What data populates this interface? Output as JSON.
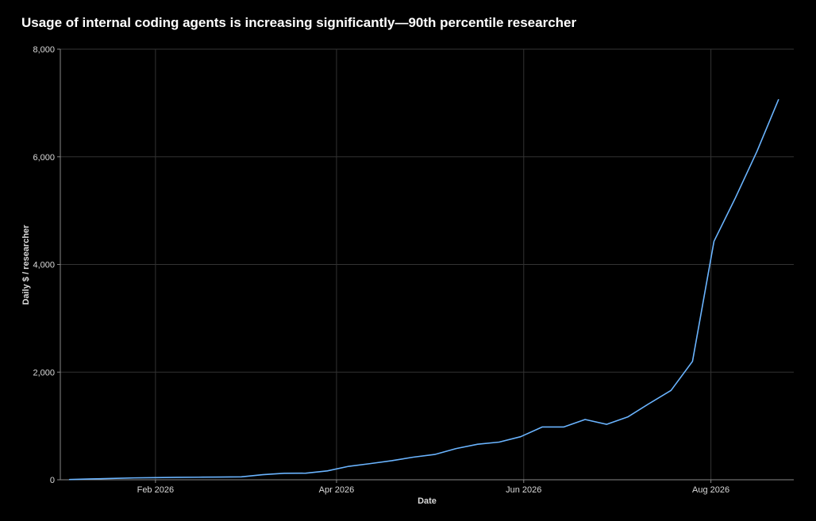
{
  "chart_data": {
    "type": "line",
    "title": "Usage of internal coding agents is increasing significantly—90th percentile researcher",
    "xlabel": "Date",
    "ylabel": "Daily $ / researcher",
    "x_ticks": [
      {
        "date": "2026-02-01",
        "label": "Feb 2026"
      },
      {
        "date": "2026-04-01",
        "label": "Apr 2026"
      },
      {
        "date": "2026-06-01",
        "label": "Jun 2026"
      },
      {
        "date": "2026-08-01",
        "label": "Aug 2026"
      }
    ],
    "y_ticks": [
      {
        "value": 0,
        "label": "0"
      },
      {
        "value": 2000,
        "label": "2,000"
      },
      {
        "value": 4000,
        "label": "4,000"
      },
      {
        "value": 6000,
        "label": "6,000"
      },
      {
        "value": 8000,
        "label": "8,000"
      }
    ],
    "xlim": [
      "2026-01-01",
      "2026-08-28"
    ],
    "ylim": [
      0,
      8000
    ],
    "grid": true,
    "line_color": "#6ab4ff",
    "grid_color": "#333333",
    "series": [
      {
        "points": [
          {
            "x": "2026-01-04",
            "y": 5
          },
          {
            "x": "2026-01-11",
            "y": 15
          },
          {
            "x": "2026-01-18",
            "y": 25
          },
          {
            "x": "2026-01-25",
            "y": 35
          },
          {
            "x": "2026-02-01",
            "y": 40
          },
          {
            "x": "2026-02-08",
            "y": 45
          },
          {
            "x": "2026-02-15",
            "y": 48
          },
          {
            "x": "2026-02-22",
            "y": 50
          },
          {
            "x": "2026-03-01",
            "y": 55
          },
          {
            "x": "2026-03-08",
            "y": 95
          },
          {
            "x": "2026-03-15",
            "y": 120
          },
          {
            "x": "2026-03-22",
            "y": 122
          },
          {
            "x": "2026-03-29",
            "y": 165
          },
          {
            "x": "2026-04-05",
            "y": 250
          },
          {
            "x": "2026-04-12",
            "y": 300
          },
          {
            "x": "2026-04-19",
            "y": 355
          },
          {
            "x": "2026-04-26",
            "y": 420
          },
          {
            "x": "2026-05-03",
            "y": 470
          },
          {
            "x": "2026-05-10",
            "y": 580
          },
          {
            "x": "2026-05-17",
            "y": 660
          },
          {
            "x": "2026-05-24",
            "y": 700
          },
          {
            "x": "2026-05-31",
            "y": 800
          },
          {
            "x": "2026-06-07",
            "y": 980
          },
          {
            "x": "2026-06-14",
            "y": 980
          },
          {
            "x": "2026-06-21",
            "y": 1120
          },
          {
            "x": "2026-06-28",
            "y": 1030
          },
          {
            "x": "2026-07-05",
            "y": 1170
          },
          {
            "x": "2026-07-12",
            "y": 1420
          },
          {
            "x": "2026-07-19",
            "y": 1660
          },
          {
            "x": "2026-07-26",
            "y": 2200
          },
          {
            "x": "2026-08-02",
            "y": 4430
          },
          {
            "x": "2026-08-09",
            "y": 5240
          },
          {
            "x": "2026-08-16",
            "y": 6100
          },
          {
            "x": "2026-08-23",
            "y": 7060
          }
        ]
      }
    ]
  }
}
